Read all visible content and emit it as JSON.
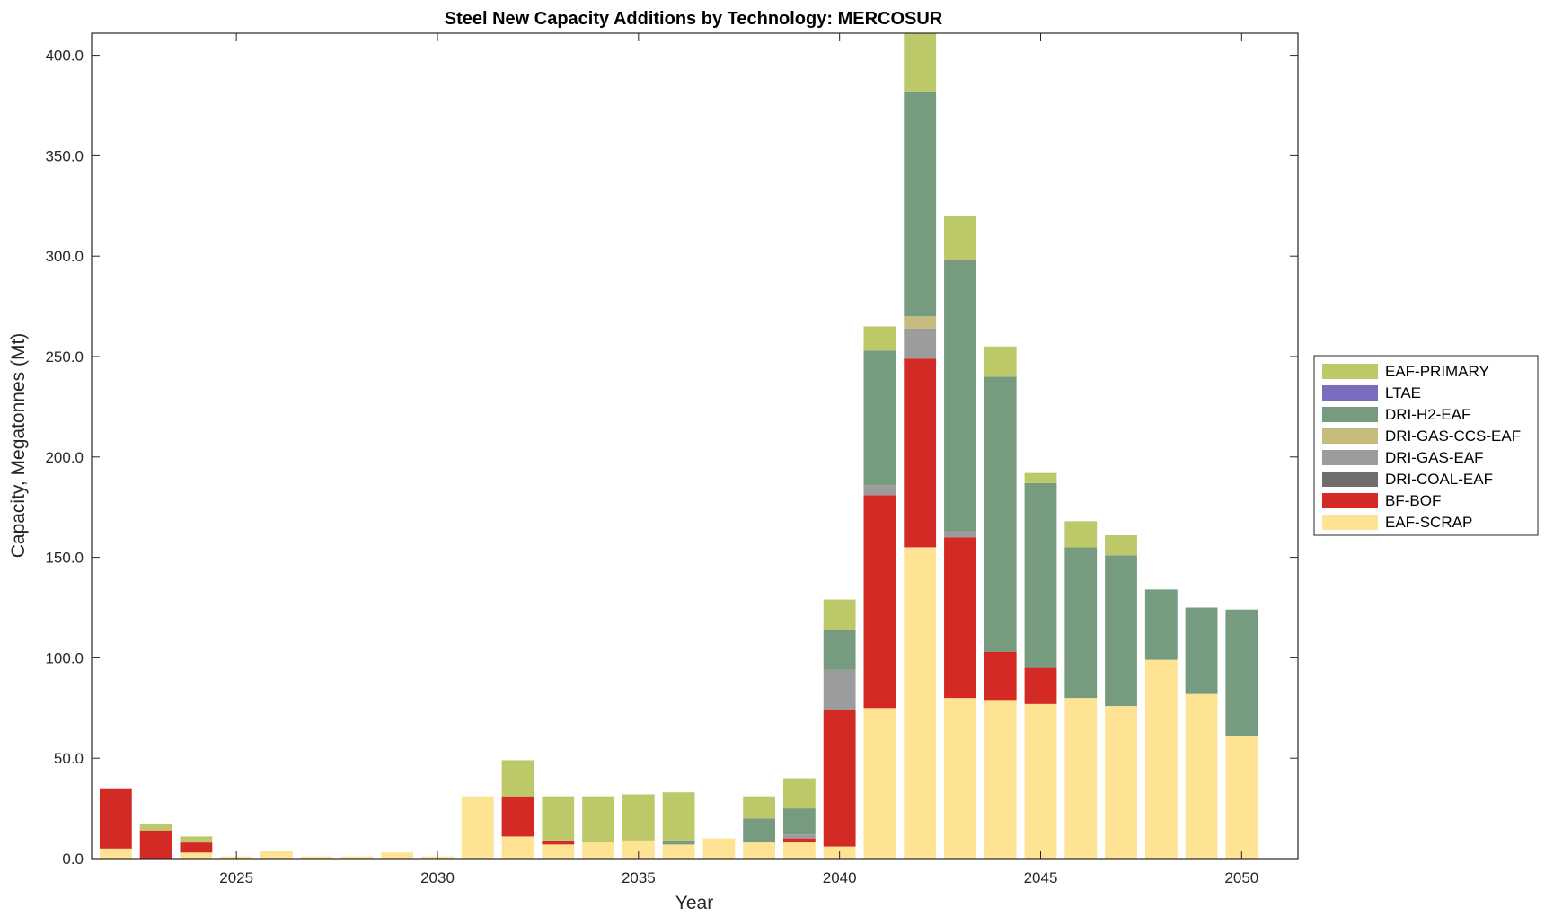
{
  "chart_data": {
    "type": "bar",
    "stacked": true,
    "title": "Steel New Capacity Additions by Technology: MERCOSUR",
    "xlabel": "Year",
    "ylabel": "Capacity, Megatonnes (Mt)",
    "xlim": [
      2021.4,
      2051.4
    ],
    "ylim": [
      0,
      411
    ],
    "xticks": [
      2025,
      2030,
      2035,
      2040,
      2045,
      2050
    ],
    "xtick_labels": [
      "2025",
      "2030",
      "2035",
      "2040",
      "2045",
      "2050"
    ],
    "yticks": [
      0,
      50,
      100,
      150,
      200,
      250,
      300,
      350,
      400
    ],
    "ytick_labels": [
      "0.0",
      "50.0",
      "100.0",
      "150.0",
      "200.0",
      "250.0",
      "300.0",
      "350.0",
      "400.0"
    ],
    "legend_position": "right",
    "categories": [
      2022,
      2023,
      2024,
      2025,
      2026,
      2027,
      2028,
      2029,
      2030,
      2031,
      2032,
      2033,
      2034,
      2035,
      2036,
      2037,
      2038,
      2039,
      2040,
      2041,
      2042,
      2043,
      2044,
      2045,
      2046,
      2047,
      2048,
      2049,
      2050
    ],
    "series": [
      {
        "name": "EAF-SCRAP",
        "color": "#FEE394",
        "values": [
          5,
          0,
          3,
          1,
          4,
          1,
          1,
          3,
          1,
          31,
          11,
          7,
          8,
          9,
          7,
          10,
          8,
          8,
          6,
          75,
          155,
          80,
          79,
          77,
          80,
          76,
          99,
          82,
          61
        ]
      },
      {
        "name": "BF-BOF",
        "color": "#D42A26",
        "values": [
          30,
          14,
          5,
          0,
          0,
          0,
          0,
          0,
          0,
          0,
          20,
          2,
          0,
          0,
          0,
          0,
          0,
          2,
          68,
          106,
          94,
          80,
          24,
          18,
          0,
          0,
          0,
          0,
          0
        ]
      },
      {
        "name": "DRI-COAL-EAF",
        "color": "#6E6E6E",
        "values": [
          0,
          0,
          0,
          0,
          0,
          0,
          0,
          0,
          0,
          0,
          0,
          0,
          0,
          0,
          0,
          0,
          0,
          0,
          0,
          0,
          0,
          0,
          0,
          0,
          0,
          0,
          0,
          0,
          0
        ]
      },
      {
        "name": "DRI-GAS-EAF",
        "color": "#9C9C9C",
        "values": [
          0,
          0,
          0,
          0,
          0,
          0,
          0,
          0,
          0,
          0,
          0,
          0,
          0,
          0,
          0,
          0,
          0,
          2,
          20,
          5,
          15,
          3,
          0,
          0,
          0,
          0,
          0,
          0,
          0
        ]
      },
      {
        "name": "DRI-GAS-CCS-EAF",
        "color": "#C5BB7D",
        "values": [
          0,
          0,
          0,
          0,
          0,
          0,
          0,
          0,
          0,
          0,
          0,
          0,
          0,
          0,
          0,
          0,
          0,
          0,
          0,
          0,
          6,
          0,
          0,
          0,
          0,
          0,
          0,
          0,
          0
        ]
      },
      {
        "name": "DRI-H2-EAF",
        "color": "#769B7E",
        "values": [
          0,
          0,
          0,
          0,
          0,
          0,
          0,
          0,
          0,
          0,
          0,
          0,
          0,
          0,
          2,
          0,
          12,
          13,
          20,
          67,
          112,
          135,
          137,
          92,
          75,
          75,
          35,
          43,
          63
        ]
      },
      {
        "name": "LTAE",
        "color": "#7A6DC0",
        "values": [
          0,
          0,
          0,
          0,
          0,
          0,
          0,
          0,
          0,
          0,
          0,
          0,
          0,
          0,
          0,
          0,
          0,
          0,
          0,
          0,
          0,
          0,
          0,
          0,
          0,
          0,
          0,
          0,
          0
        ]
      },
      {
        "name": "EAF-PRIMARY",
        "color": "#BDC869",
        "values": [
          0,
          3,
          3,
          0,
          0,
          0,
          0,
          0,
          0,
          0,
          18,
          22,
          23,
          23,
          24,
          0,
          11,
          15,
          15,
          12,
          29,
          22,
          15,
          5,
          13,
          10,
          0,
          0,
          0
        ]
      }
    ],
    "legend_order": [
      "EAF-PRIMARY",
      "LTAE",
      "DRI-H2-EAF",
      "DRI-GAS-CCS-EAF",
      "DRI-GAS-EAF",
      "DRI-COAL-EAF",
      "BF-BOF",
      "EAF-SCRAP"
    ]
  }
}
